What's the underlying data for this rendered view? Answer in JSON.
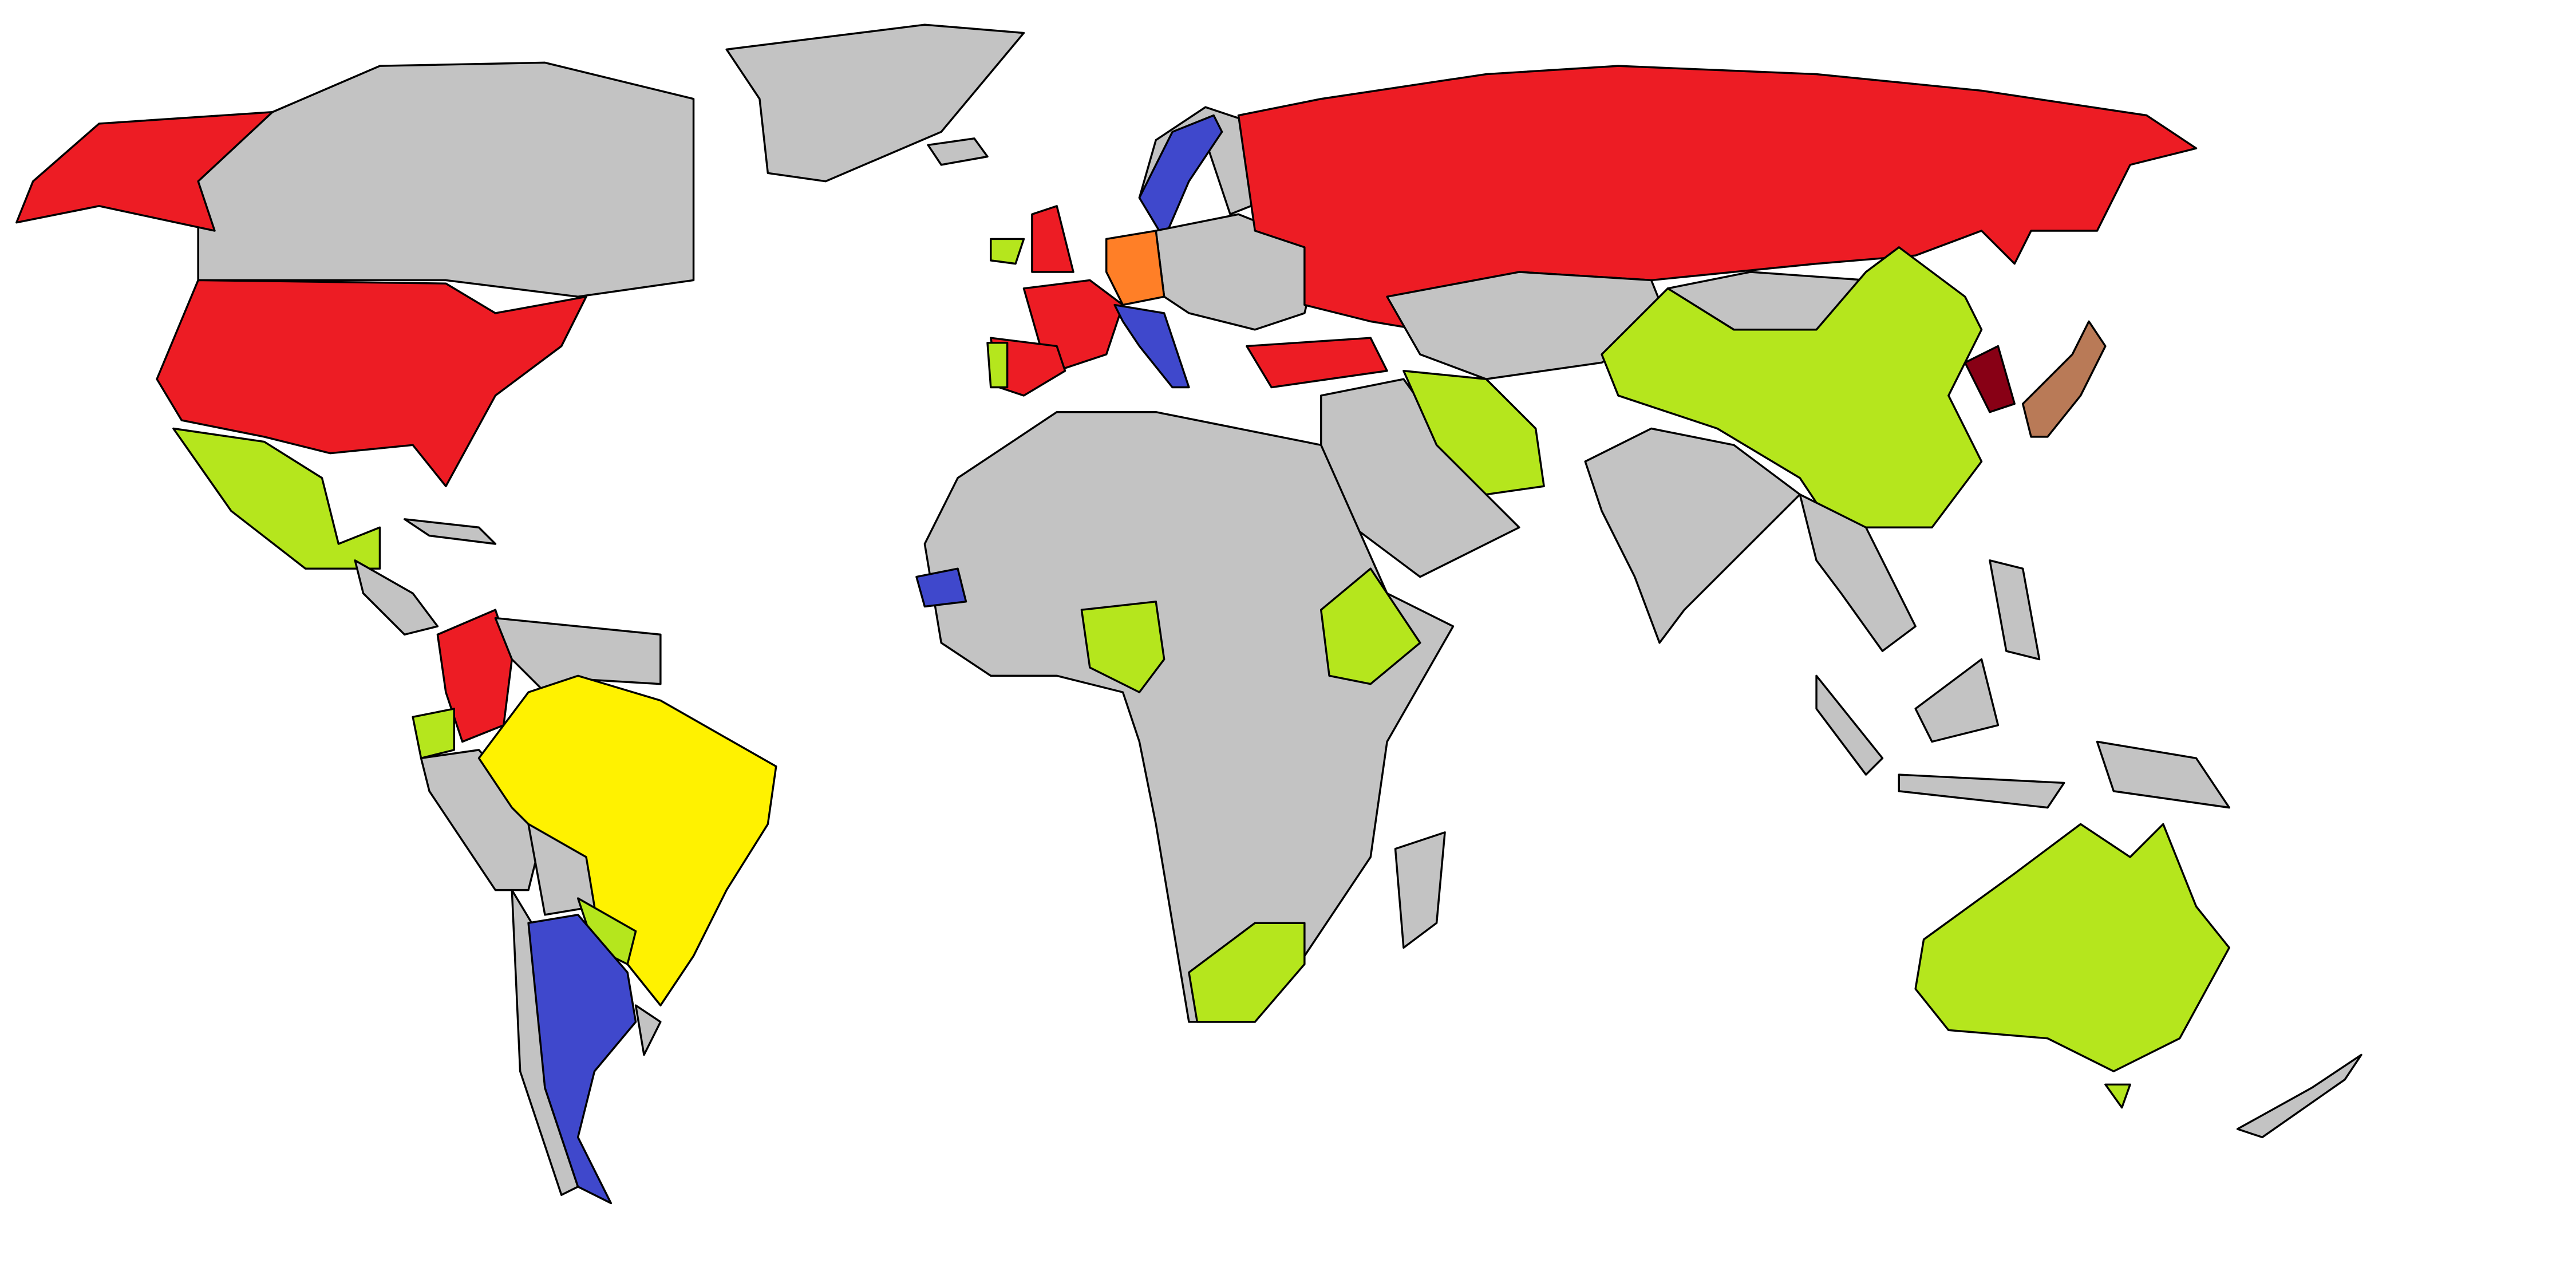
{
  "map": {
    "background": "#ffffff",
    "border_color": "#000000",
    "colors": {
      "grey": "#c3c3c3",
      "red": "#ed1c24",
      "lime": "#b5e61d",
      "blue": "#3f48cc",
      "yellow": "#fff200",
      "orange": "#ff7f27",
      "brown": "#b97a57",
      "darkred": "#880015"
    }
  }
}
